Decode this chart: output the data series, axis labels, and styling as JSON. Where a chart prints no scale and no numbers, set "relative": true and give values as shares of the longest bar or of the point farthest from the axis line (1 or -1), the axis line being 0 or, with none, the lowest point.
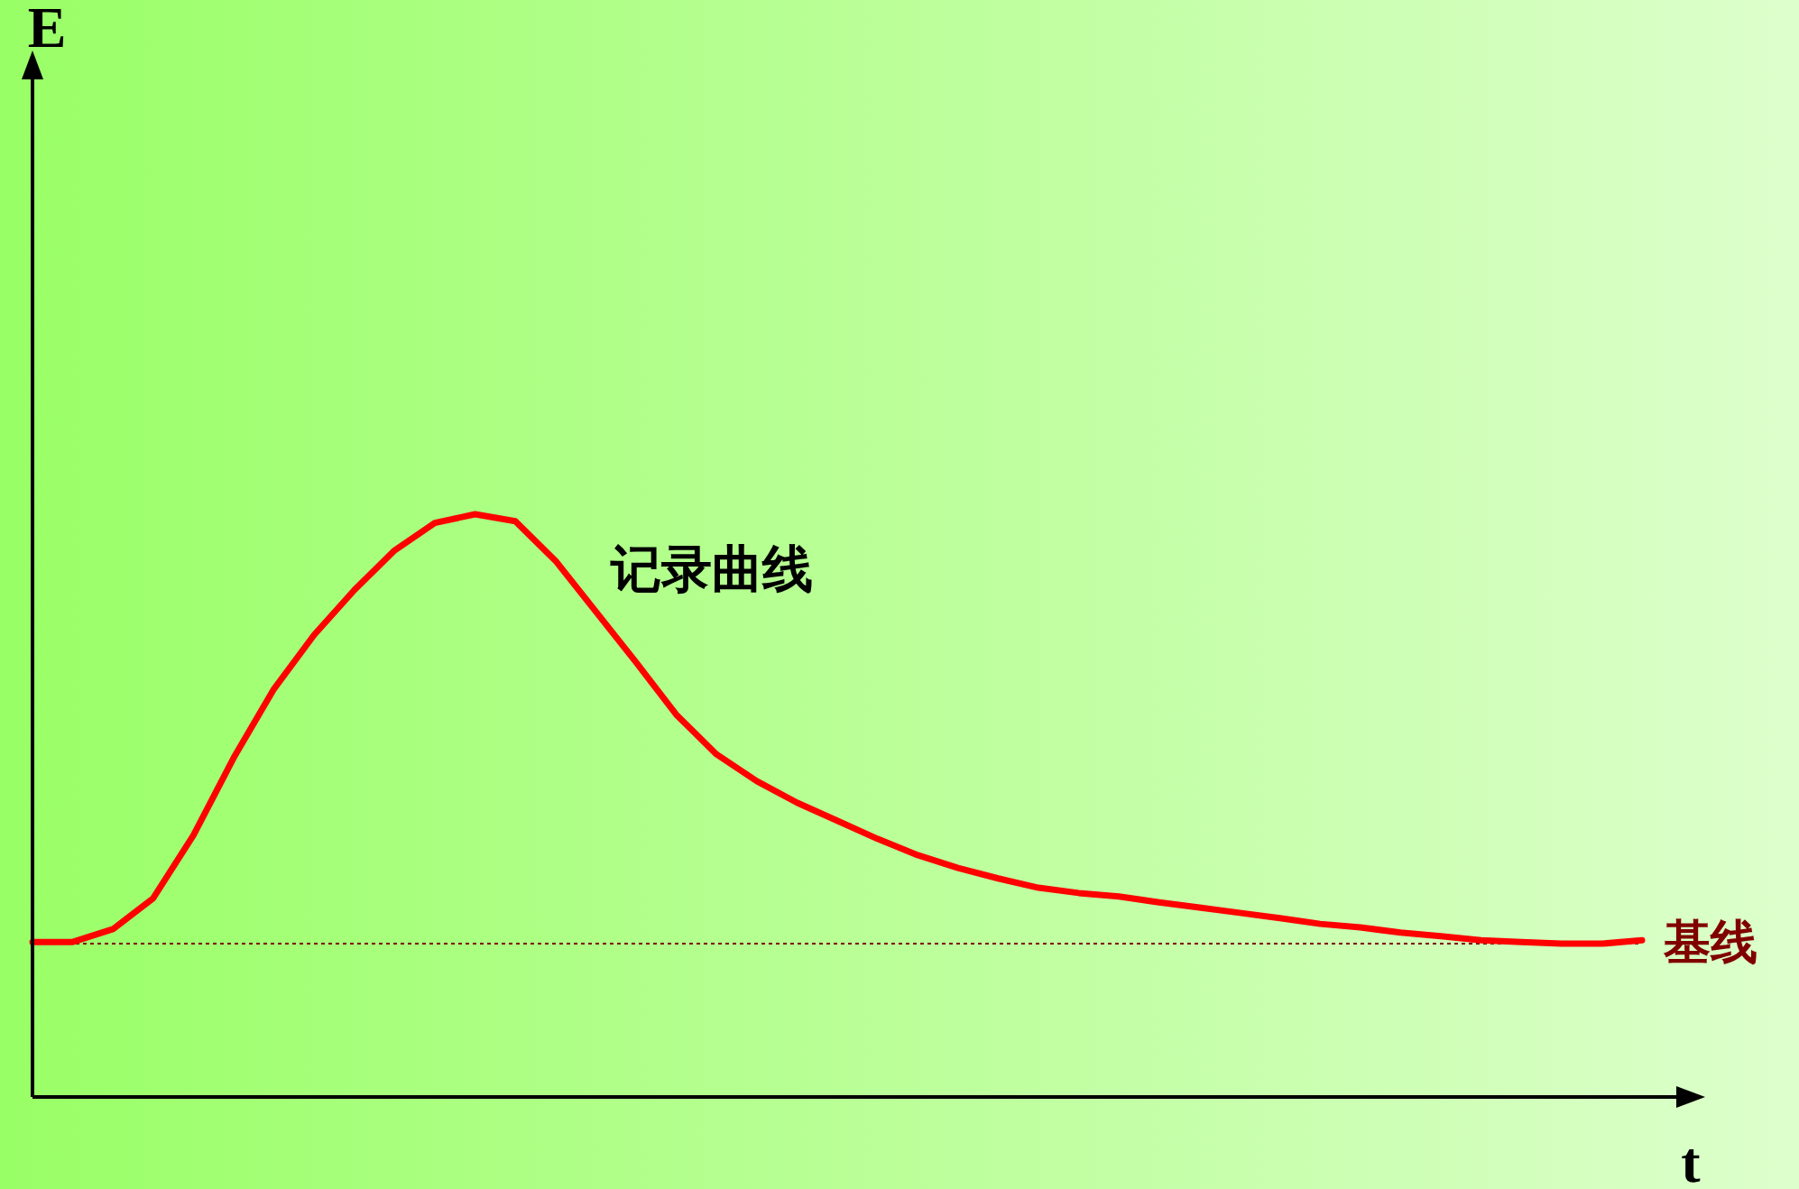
{
  "chart_data": {
    "type": "line",
    "xlabel": "t",
    "annotations": [
      "E"
    ],
    "relative": true,
    "categories": [
      null,
      null,
      null,
      null,
      null,
      null,
      null,
      null,
      null,
      null,
      null,
      null,
      null,
      null,
      null,
      null,
      null,
      null,
      null,
      null,
      null,
      null,
      null,
      null,
      null,
      null,
      null,
      null,
      null,
      null,
      null,
      null,
      null,
      null,
      null,
      null,
      null,
      null,
      null,
      null,
      null
    ],
    "series": [
      {
        "name": "记录曲线",
        "color": "#ff0000",
        "values": [
          0.266,
          0.266,
          0.288,
          0.341,
          0.449,
          0.582,
          0.7,
          0.793,
          0.87,
          0.938,
          0.985,
          1,
          0.988,
          0.92,
          0.833,
          0.746,
          0.656,
          0.588,
          0.542,
          0.505,
          0.474,
          0.443,
          0.415,
          0.393,
          0.375,
          0.359,
          0.35,
          0.344,
          0.334,
          0.325,
          0.316,
          0.307,
          0.297,
          0.291,
          0.282,
          0.276,
          0.269,
          0.266,
          0.263,
          0.263,
          0.269
        ]
      }
    ],
    "ref_lines": [
      {
        "axis": "y",
        "value": 0.263,
        "label": "基线",
        "color": "#800000",
        "line_style": "dotted"
      }
    ]
  }
}
